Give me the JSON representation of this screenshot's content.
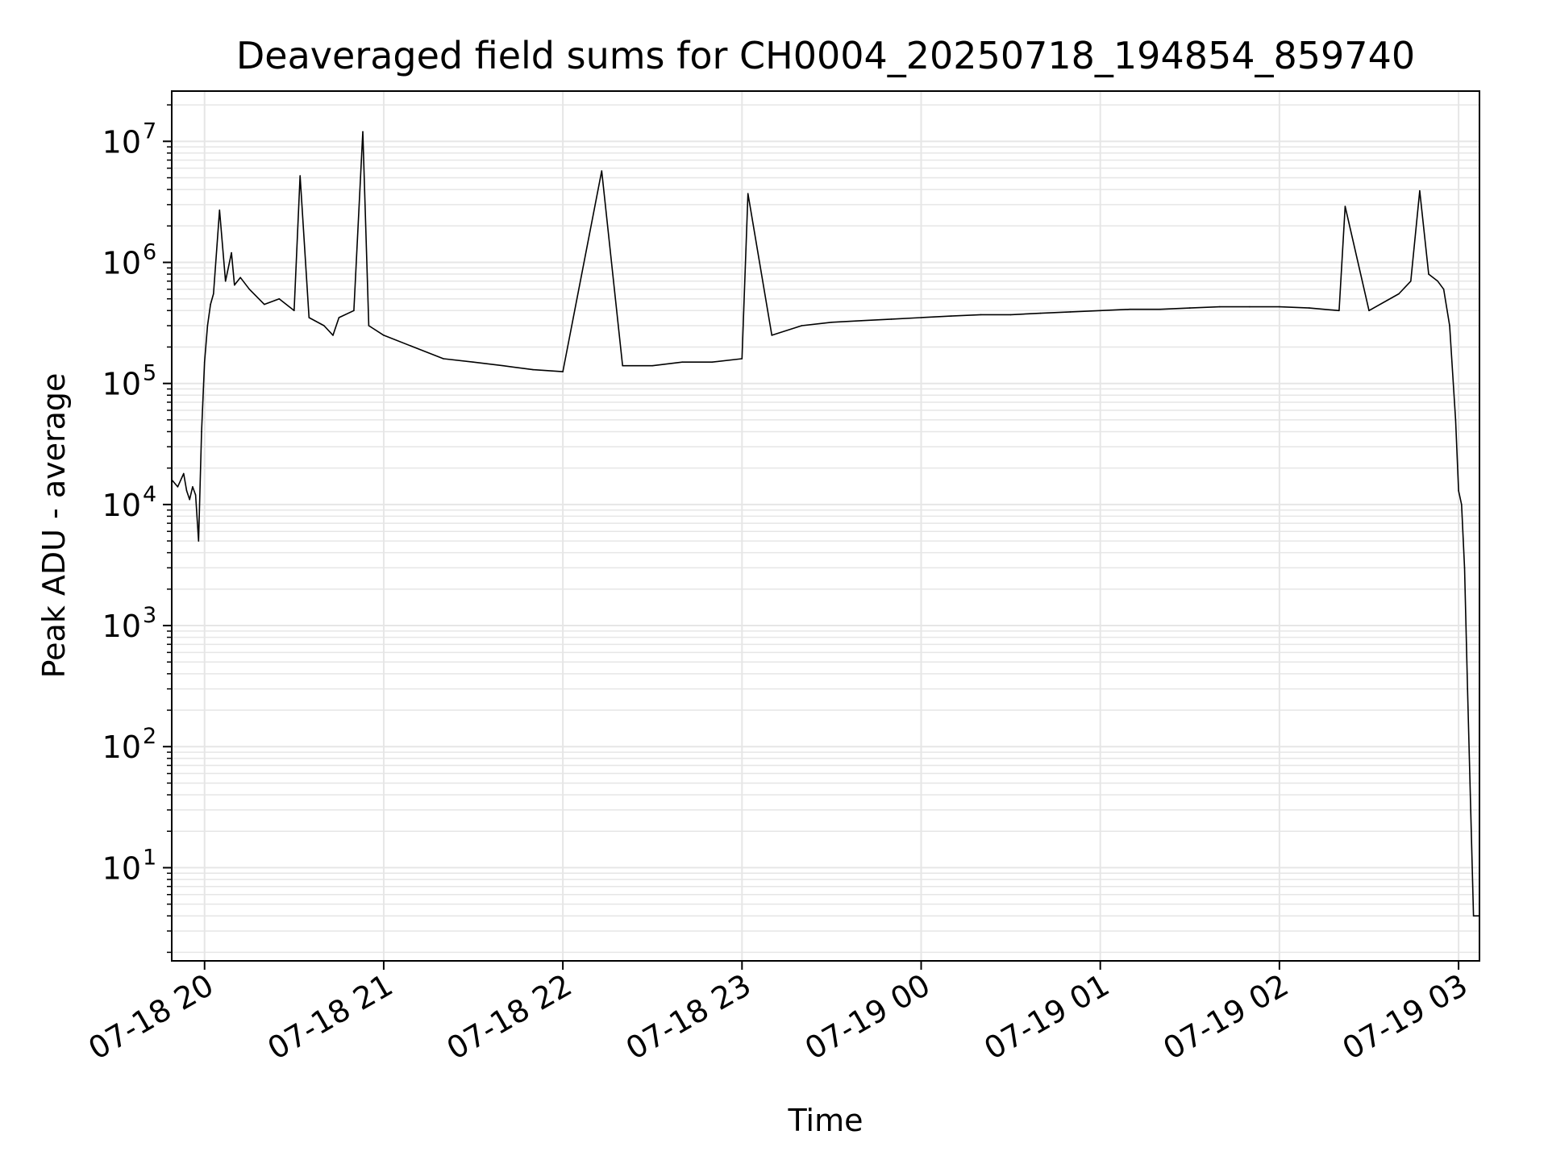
{
  "chart_data": {
    "type": "line",
    "title": "Deaveraged field sums for CH0004_20250718_194854_859740",
    "xlabel": "Time",
    "ylabel": "Peak ADU - average",
    "yscale": "log",
    "ylim": [
      1.7,
      26000000
    ],
    "xlim": [
      "2025-07-18T19:49:00",
      "2025-07-19T03:07:00"
    ],
    "grid": true,
    "minor_grid": true,
    "line_color": "#000000",
    "grid_color": "#e6e6e6",
    "x_tick_values": [
      "2025-07-18T20:00:00",
      "2025-07-18T21:00:00",
      "2025-07-18T22:00:00",
      "2025-07-18T23:00:00",
      "2025-07-19T00:00:00",
      "2025-07-19T01:00:00",
      "2025-07-19T02:00:00",
      "2025-07-19T03:00:00"
    ],
    "x_tick_labels": [
      "07-18 20",
      "07-18 21",
      "07-18 22",
      "07-18 23",
      "07-19 00",
      "07-19 01",
      "07-19 02",
      "07-19 03"
    ],
    "y_tick_exponents": [
      "1",
      "2",
      "3",
      "4",
      "5",
      "6",
      "7"
    ],
    "y_tick_base": "10",
    "series": [
      {
        "x": [
          "2025-07-18T19:49:00",
          "2025-07-18T19:51:00",
          "2025-07-18T19:53:00",
          "2025-07-18T19:54:00",
          "2025-07-18T19:55:00",
          "2025-07-18T19:56:00",
          "2025-07-18T19:57:00",
          "2025-07-18T19:58:00",
          "2025-07-18T19:59:00",
          "2025-07-18T20:00:00",
          "2025-07-18T20:01:00",
          "2025-07-18T20:02:00",
          "2025-07-18T20:03:00",
          "2025-07-18T20:05:00",
          "2025-07-18T20:07:00",
          "2025-07-18T20:09:00",
          "2025-07-18T20:10:00",
          "2025-07-18T20:12:00",
          "2025-07-18T20:15:00",
          "2025-07-18T20:20:00",
          "2025-07-18T20:25:00",
          "2025-07-18T20:30:00",
          "2025-07-18T20:32:00",
          "2025-07-18T20:35:00",
          "2025-07-18T20:40:00",
          "2025-07-18T20:43:00",
          "2025-07-18T20:45:00",
          "2025-07-18T20:50:00",
          "2025-07-18T20:53:00",
          "2025-07-18T20:55:00",
          "2025-07-18T21:00:00",
          "2025-07-18T21:10:00",
          "2025-07-18T21:20:00",
          "2025-07-18T21:30:00",
          "2025-07-18T21:40:00",
          "2025-07-18T21:50:00",
          "2025-07-18T22:00:00",
          "2025-07-18T22:13:00",
          "2025-07-18T22:20:00",
          "2025-07-18T22:30:00",
          "2025-07-18T22:40:00",
          "2025-07-18T22:50:00",
          "2025-07-18T23:00:00",
          "2025-07-18T23:02:00",
          "2025-07-18T23:10:00",
          "2025-07-18T23:20:00",
          "2025-07-18T23:30:00",
          "2025-07-18T23:40:00",
          "2025-07-18T23:50:00",
          "2025-07-19T00:00:00",
          "2025-07-19T00:10:00",
          "2025-07-19T00:20:00",
          "2025-07-19T00:30:00",
          "2025-07-19T00:40:00",
          "2025-07-19T00:50:00",
          "2025-07-19T01:00:00",
          "2025-07-19T01:10:00",
          "2025-07-19T01:20:00",
          "2025-07-19T01:30:00",
          "2025-07-19T01:40:00",
          "2025-07-19T01:50:00",
          "2025-07-19T02:00:00",
          "2025-07-19T02:10:00",
          "2025-07-19T02:20:00",
          "2025-07-19T02:22:00",
          "2025-07-19T02:30:00",
          "2025-07-19T02:40:00",
          "2025-07-19T02:44:00",
          "2025-07-19T02:47:00",
          "2025-07-19T02:50:00",
          "2025-07-19T02:53:00",
          "2025-07-19T02:55:00",
          "2025-07-19T02:57:00",
          "2025-07-19T02:59:00",
          "2025-07-19T03:00:00",
          "2025-07-19T03:01:00",
          "2025-07-19T03:02:00",
          "2025-07-19T03:03:00",
          "2025-07-19T03:05:00",
          "2025-07-19T03:07:00"
        ],
        "y": [
          16000,
          14000,
          18000,
          13000,
          11000,
          14000,
          12000,
          5000,
          40000,
          150000,
          300000,
          450000,
          550000,
          2700000,
          700000,
          1200000,
          650000,
          750000,
          600000,
          450000,
          500000,
          400000,
          5200000,
          350000,
          300000,
          250000,
          350000,
          400000,
          12000000,
          300000,
          250000,
          200000,
          160000,
          150000,
          140000,
          130000,
          125000,
          5700000,
          140000,
          140000,
          150000,
          150000,
          160000,
          3700000,
          250000,
          300000,
          320000,
          330000,
          340000,
          350000,
          360000,
          370000,
          370000,
          380000,
          390000,
          400000,
          410000,
          410000,
          420000,
          430000,
          430000,
          430000,
          420000,
          400000,
          2900000,
          400000,
          550000,
          700000,
          3900000,
          800000,
          700000,
          600000,
          300000,
          50000,
          13000,
          10000,
          3000,
          300,
          4,
          4
        ]
      }
    ]
  }
}
